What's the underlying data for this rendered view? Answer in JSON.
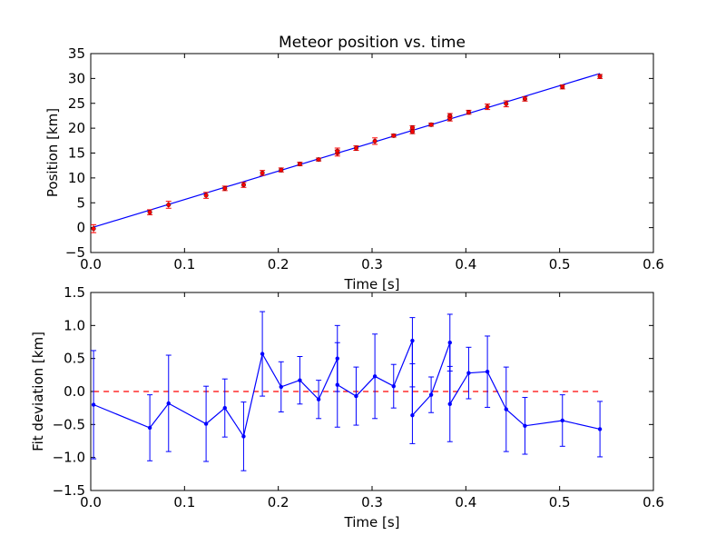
{
  "chart_data": [
    {
      "type": "scatter",
      "title": "Meteor position vs. time",
      "xlabel": "Time [s]",
      "ylabel": "Position [km]",
      "xlim": [
        0.0,
        0.6
      ],
      "ylim": [
        -5,
        35
      ],
      "xticks": [
        "0.0",
        "0.1",
        "0.2",
        "0.3",
        "0.4",
        "0.5",
        "0.6"
      ],
      "yticks": [
        "−5",
        "0",
        "5",
        "10",
        "15",
        "20",
        "25",
        "30",
        "35"
      ],
      "grid": false,
      "colors": {
        "points": "#ff0000",
        "errorbars": "#ff0000",
        "fit": "#0000ff"
      },
      "series": [
        {
          "kind": "points-with-errorbars",
          "x": [
            0.003,
            0.063,
            0.083,
            0.123,
            0.143,
            0.163,
            0.183,
            0.203,
            0.223,
            0.243,
            0.263,
            0.263,
            0.283,
            0.303,
            0.323,
            0.343,
            0.343,
            0.363,
            0.383,
            0.383,
            0.403,
            0.423,
            0.443,
            0.463,
            0.503,
            0.543
          ],
          "y": [
            -0.2,
            3.1,
            4.6,
            6.5,
            7.9,
            8.6,
            11.0,
            11.6,
            12.8,
            13.7,
            15.0,
            15.4,
            16.0,
            17.4,
            18.5,
            19.3,
            20.1,
            20.7,
            21.9,
            22.5,
            23.2,
            24.3,
            24.9,
            25.9,
            28.3,
            30.4
          ],
          "yerr": [
            0.8,
            0.5,
            0.7,
            0.6,
            0.45,
            0.5,
            0.5,
            0.4,
            0.35,
            0.3,
            0.6,
            0.6,
            0.45,
            0.65,
            0.3,
            0.4,
            0.4,
            0.3,
            0.45,
            0.45,
            0.4,
            0.55,
            0.6,
            0.45,
            0.4,
            0.4
          ]
        },
        {
          "kind": "fit-line",
          "x": [
            0.003,
            0.543
          ],
          "y": [
            0.1,
            31.0
          ]
        }
      ]
    },
    {
      "type": "line",
      "xlabel": "Time [s]",
      "ylabel": "Fit deviation [km]",
      "xlim": [
        0.0,
        0.6
      ],
      "ylim": [
        -1.5,
        1.5
      ],
      "xticks": [
        "0.0",
        "0.1",
        "0.2",
        "0.3",
        "0.4",
        "0.5",
        "0.6"
      ],
      "yticks": [
        "−1.5",
        "−1.0",
        "−0.5",
        "0.0",
        "0.5",
        "1.0",
        "1.5"
      ],
      "grid": false,
      "colors": {
        "series": "#0000ff",
        "zero_line": "#ff0000"
      },
      "series": [
        {
          "kind": "line-with-errorbars",
          "x": [
            0.003,
            0.063,
            0.083,
            0.123,
            0.143,
            0.163,
            0.183,
            0.203,
            0.223,
            0.243,
            0.263,
            0.263,
            0.283,
            0.303,
            0.323,
            0.343,
            0.343,
            0.363,
            0.383,
            0.383,
            0.403,
            0.423,
            0.443,
            0.463,
            0.503,
            0.543
          ],
          "y": [
            -0.2,
            -0.55,
            -0.18,
            -0.49,
            -0.25,
            -0.68,
            0.57,
            0.07,
            0.17,
            -0.12,
            0.5,
            0.1,
            -0.07,
            0.23,
            0.08,
            0.77,
            -0.36,
            -0.05,
            0.74,
            -0.19,
            0.28,
            0.3,
            -0.27,
            -0.52,
            -0.44,
            -0.57
          ],
          "yerr": [
            0.82,
            0.5,
            0.73,
            0.57,
            0.44,
            0.52,
            0.64,
            0.38,
            0.36,
            0.29,
            0.5,
            0.64,
            0.44,
            0.64,
            0.33,
            0.35,
            0.43,
            0.27,
            0.43,
            0.57,
            0.39,
            0.54,
            0.64,
            0.43,
            0.39,
            0.42
          ]
        },
        {
          "kind": "zero-reference",
          "x": [
            0.003,
            0.543
          ],
          "y": [
            0.0,
            0.0
          ],
          "style": "dashed"
        }
      ]
    }
  ]
}
